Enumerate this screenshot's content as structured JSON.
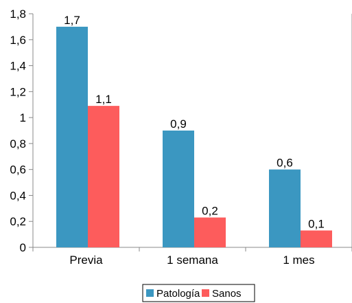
{
  "chart_data": {
    "type": "bar",
    "title": "",
    "xlabel": "",
    "ylabel": "",
    "categories": [
      "Previa",
      "1 semana",
      "1 mes"
    ],
    "series": [
      {
        "name": "Patología",
        "values": [
          1.7,
          0.9,
          0.6
        ],
        "value_labels": [
          "1,7",
          "0,9",
          "0,6"
        ],
        "color": "#3b97c1"
      },
      {
        "name": "Sanos",
        "values": [
          1.09,
          0.23,
          0.13
        ],
        "value_labels": [
          "1,1",
          "0,2",
          "0,1"
        ],
        "color": "#fd5c5c"
      }
    ],
    "ylim": [
      0,
      1.8
    ],
    "yticks": [
      0,
      0.2,
      0.4,
      0.6,
      0.8,
      1,
      1.2,
      1.4,
      1.6,
      1.8
    ],
    "ytick_labels": [
      "0",
      "0,2",
      "0,4",
      "0,6",
      "0,8",
      "1",
      "1,2",
      "1,4",
      "1,6",
      "1,8"
    ],
    "grid": false,
    "legend_position": "bottom-center"
  }
}
